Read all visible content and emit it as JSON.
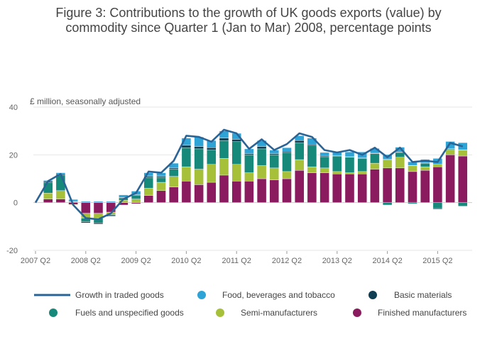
{
  "title_lines": [
    "Figure 3: Contributions to the growth of UK goods exports (value) by",
    "commodity since Quarter 1 (Jan to Mar) 2008, percentage points"
  ],
  "colors": {
    "food": "#2ea3d6",
    "basic": "#0f3d52",
    "fuels": "#16897a",
    "semi": "#a6c03a",
    "finished": "#8a1b5e",
    "growth": "#2a6496",
    "grid": "#e6e6e6",
    "zero": "#cccccc"
  },
  "chart_data": {
    "type": "bar",
    "stacked": true,
    "title": "Figure 3: Contributions to the growth of UK goods exports (value) by commodity since Quarter 1 (Jan to Mar) 2008, percentage points",
    "ylabel": "£ million, seasonally adjusted",
    "ylim": [
      -20,
      40
    ],
    "yticks": [
      40,
      20,
      0,
      -20
    ],
    "xtick_labels": [
      "2007 Q2",
      "2008 Q2",
      "2009 Q2",
      "2010 Q2",
      "2011 Q2",
      "2012 Q2",
      "2013 Q2",
      "2014 Q2",
      "2015 Q2"
    ],
    "xtick_index": [
      0,
      4,
      8,
      12,
      16,
      20,
      24,
      28,
      32
    ],
    "categories": [
      "2007 Q2",
      "2007 Q3",
      "2007 Q4",
      "2008 Q1",
      "2008 Q2",
      "2008 Q3",
      "2008 Q4",
      "2009 Q1",
      "2009 Q2",
      "2009 Q3",
      "2009 Q4",
      "2010 Q1",
      "2010 Q2",
      "2010 Q3",
      "2010 Q4",
      "2011 Q1",
      "2011 Q2",
      "2011 Q3",
      "2011 Q4",
      "2012 Q1",
      "2012 Q2",
      "2012 Q3",
      "2012 Q4",
      "2013 Q1",
      "2013 Q2",
      "2013 Q3",
      "2013 Q4",
      "2014 Q1",
      "2014 Q2",
      "2014 Q3",
      "2014 Q4",
      "2015 Q1",
      "2015 Q2",
      "2015 Q3",
      "2015 Q4"
    ],
    "legend": [
      {
        "key": "growth",
        "label": "Growth in traded goods",
        "marker": "line"
      },
      {
        "key": "food",
        "label": "Food, beverages and tobacco",
        "marker": "dot"
      },
      {
        "key": "basic",
        "label": "Basic materials",
        "marker": "dot"
      },
      {
        "key": "fuels",
        "label": "Fuels and unspecified goods",
        "marker": "dot"
      },
      {
        "key": "semi",
        "label": "Semi-manufacturers",
        "marker": "dot"
      },
      {
        "key": "finished",
        "label": "Finished manufacturers",
        "marker": "dot"
      }
    ],
    "series": [
      {
        "key": "finished",
        "name": "Finished manufacturers",
        "values": [
          null,
          1.5,
          1.5,
          -0.8,
          -4.5,
          -4.5,
          -4.0,
          -1.0,
          -0.5,
          3.0,
          5.0,
          6.5,
          9.0,
          7.5,
          8.5,
          11.5,
          9.0,
          9.0,
          10.0,
          9.5,
          10.0,
          13.5,
          12.5,
          12.5,
          12.0,
          12.0,
          12.0,
          14.0,
          14.5,
          14.5,
          13.0,
          13.5,
          15.0,
          20.0,
          19.5
        ]
      },
      {
        "key": "semi",
        "name": "Semi-manufacturers",
        "values": [
          null,
          2.5,
          3.5,
          -0.2,
          -2.0,
          -2.0,
          -1.0,
          1.0,
          1.5,
          3.0,
          3.5,
          4.5,
          6.0,
          6.5,
          7.5,
          7.0,
          7.0,
          3.5,
          5.5,
          5.0,
          3.0,
          4.5,
          2.5,
          2.0,
          1.0,
          0.5,
          1.0,
          2.5,
          3.5,
          4.5,
          2.5,
          1.5,
          1.0,
          2.0,
          2.5
        ]
      },
      {
        "key": "fuels",
        "name": "Fuels and unspecified goods",
        "values": [
          null,
          4.5,
          6.5,
          0.3,
          -1.5,
          -2.0,
          -0.5,
          1.0,
          1.5,
          4.5,
          2.0,
          3.0,
          8.0,
          8.5,
          6.0,
          7.5,
          9.5,
          7.5,
          7.0,
          5.5,
          8.0,
          7.0,
          9.0,
          4.5,
          6.5,
          6.5,
          5.5,
          4.0,
          -1.0,
          2.0,
          -0.5,
          1.5,
          -2.5,
          0.5,
          -1.5
        ]
      },
      {
        "key": "basic",
        "name": "Basic materials",
        "values": [
          null,
          0.5,
          0.5,
          0.2,
          -0.5,
          -0.5,
          -0.3,
          0.2,
          0.3,
          0.5,
          0.5,
          0.5,
          1.0,
          1.0,
          1.0,
          1.0,
          1.0,
          0.5,
          1.0,
          0.5,
          0.5,
          1.0,
          0.5,
          0.5,
          0.2,
          0.2,
          0.2,
          0.2,
          0.1,
          0.2,
          0.1,
          0.1,
          -0.3,
          0.1,
          0.1
        ]
      },
      {
        "key": "food",
        "name": "Food, beverages and tobacco",
        "values": [
          null,
          0.3,
          0.5,
          0.8,
          0.5,
          0.5,
          0.5,
          1.0,
          1.5,
          1.5,
          1.5,
          2.0,
          3.0,
          4.0,
          3.0,
          3.0,
          2.5,
          2.0,
          2.5,
          1.5,
          1.5,
          2.0,
          2.5,
          1.5,
          1.5,
          2.0,
          2.5,
          2.0,
          2.0,
          2.0,
          1.5,
          1.5,
          2.5,
          3.0,
          3.0
        ]
      }
    ],
    "growth": [
      0.0,
      9.0,
      12.0,
      -1.0,
      -6.5,
      -7.0,
      -4.5,
      1.5,
      4.0,
      13.0,
      12.5,
      17.5,
      28.0,
      27.5,
      25.5,
      30.5,
      29.0,
      22.5,
      26.5,
      22.0,
      24.5,
      29.0,
      27.5,
      22.0,
      21.0,
      22.0,
      20.0,
      23.0,
      19.0,
      23.0,
      17.0,
      17.5,
      17.0,
      25.0,
      23.5
    ]
  }
}
